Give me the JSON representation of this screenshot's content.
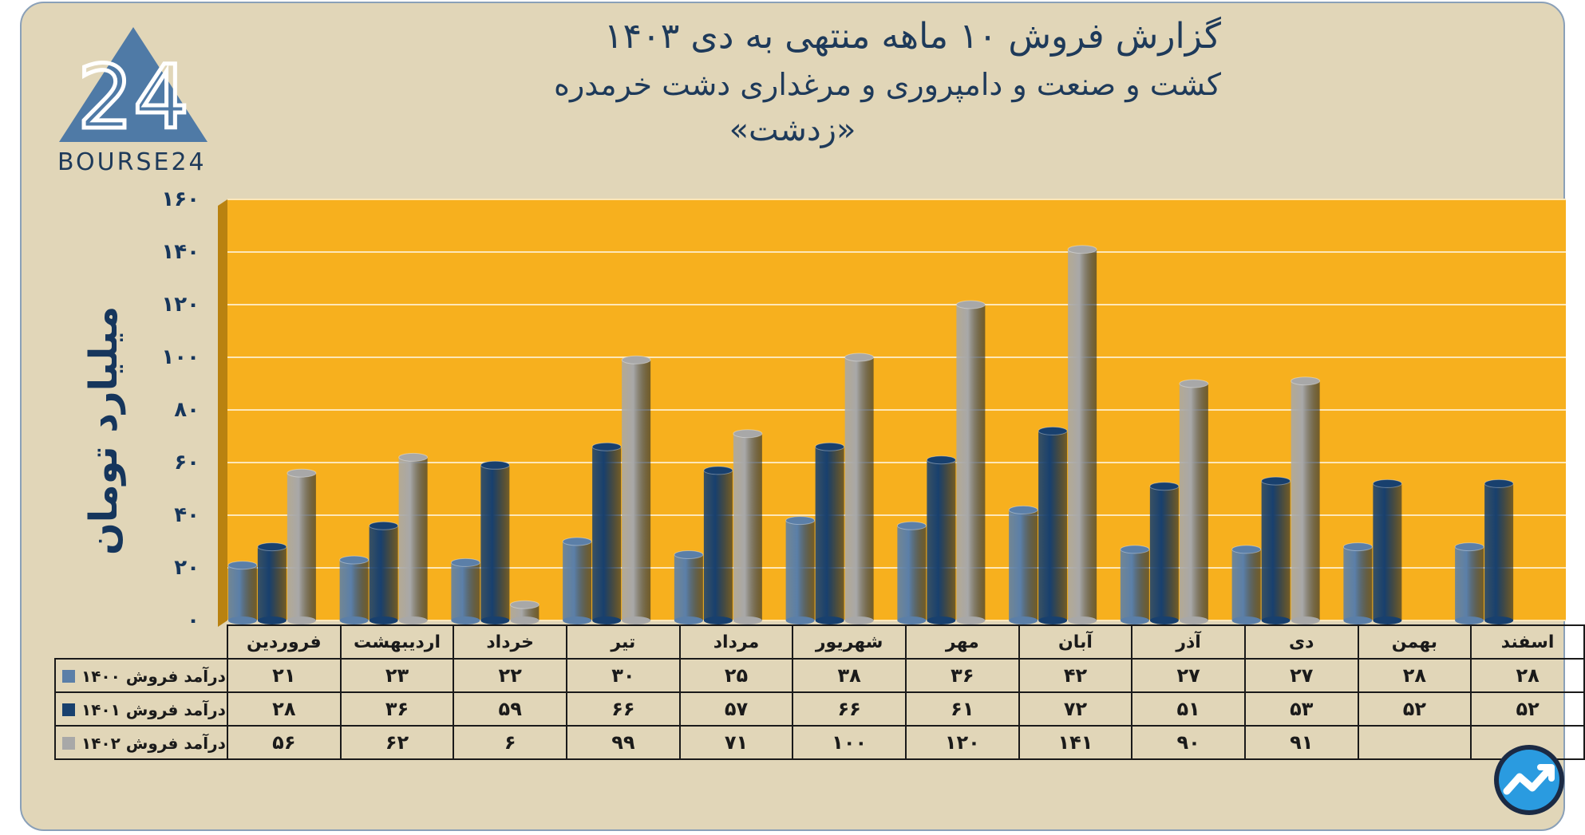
{
  "header": {
    "title_line1": "گزارش  فروش ۱۰ ماهه منتهی به دی ۱۴۰۳",
    "title_line2": "کشت و صنعت و دامپروری و مرغداری دشت خرمدره",
    "title_line3": "«زدشت»"
  },
  "logo": {
    "number": "24",
    "text": "BOURSE24"
  },
  "colors": {
    "s1400": "#5b7fa8",
    "s1401": "#18406e",
    "s1402": "#a8a8a8",
    "plot_bg": "#f7b01e",
    "frame_bg": "#e1d6b8",
    "text": "#16365c"
  },
  "chart_data": {
    "type": "bar",
    "ylabel": "میلیارد تومان",
    "ylim": [
      0,
      160
    ],
    "yticks": [
      0,
      20,
      40,
      60,
      80,
      100,
      120,
      140,
      160
    ],
    "ytick_labels": [
      "۰",
      "۲۰",
      "۴۰",
      "۶۰",
      "۸۰",
      "۱۰۰",
      "۱۲۰",
      "۱۴۰",
      "۱۶۰"
    ],
    "grid": true,
    "categories": [
      "فروردین",
      "اردیبهشت",
      "خرداد",
      "تیر",
      "مرداد",
      "شهریور",
      "مهر",
      "آبان",
      "آذر",
      "دی",
      "بهمن",
      "اسفند"
    ],
    "series": [
      {
        "name": "درآمد فروش ۱۴۰۰",
        "values": [
          21,
          23,
          22,
          30,
          25,
          38,
          36,
          42,
          27,
          27,
          28,
          28
        ],
        "labels": [
          "۲۱",
          "۲۳",
          "۲۲",
          "۳۰",
          "۲۵",
          "۳۸",
          "۳۶",
          "۴۲",
          "۲۷",
          "۲۷",
          "۲۸",
          "۲۸"
        ]
      },
      {
        "name": "درآمد فروش ۱۴۰۱",
        "values": [
          28,
          36,
          59,
          66,
          57,
          66,
          61,
          72,
          51,
          53,
          52,
          52
        ],
        "labels": [
          "۲۸",
          "۳۶",
          "۵۹",
          "۶۶",
          "۵۷",
          "۶۶",
          "۶۱",
          "۷۲",
          "۵۱",
          "۵۳",
          "۵۲",
          "۵۲"
        ]
      },
      {
        "name": "درآمد فروش ۱۴۰۲",
        "values": [
          56,
          62,
          6,
          99,
          71,
          100,
          120,
          141,
          90,
          91,
          null,
          null
        ],
        "labels": [
          "۵۶",
          "۶۲",
          "۶",
          "۹۹",
          "۷۱",
          "۱۰۰",
          "۱۲۰",
          "۱۴۱",
          "۹۰",
          "۹۱",
          "",
          ""
        ]
      }
    ]
  }
}
